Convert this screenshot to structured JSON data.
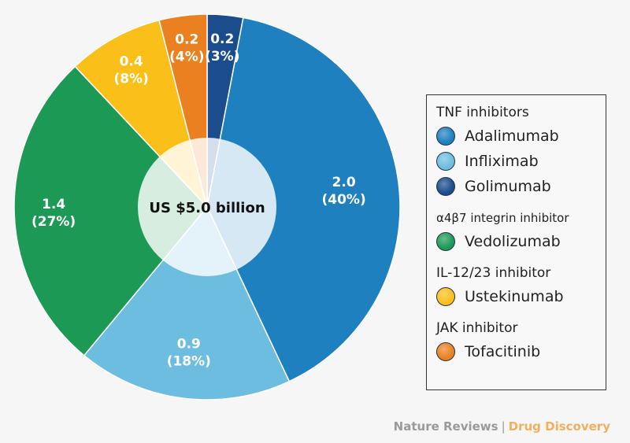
{
  "chart_data": {
    "type": "pie",
    "title": "",
    "center_label": "US $5.0 billion",
    "total": 5.0,
    "slices": [
      {
        "name": "Golimumab",
        "value": 0.2,
        "percent": 3,
        "value_label": "0.2",
        "percent_label": "(3%)",
        "color": "#1b4c8c"
      },
      {
        "name": "Adalimumab",
        "value": 2.0,
        "percent": 40,
        "value_label": "2.0",
        "percent_label": "(40%)",
        "color": "#1f80c0"
      },
      {
        "name": "Infliximab",
        "value": 0.9,
        "percent": 18,
        "value_label": "0.9",
        "percent_label": "(18%)",
        "color": "#6cbde0"
      },
      {
        "name": "Vedolizumab",
        "value": 1.4,
        "percent": 27,
        "value_label": "1.4",
        "percent_label": "(27%)",
        "color": "#1c9a55"
      },
      {
        "name": "Ustekinumab",
        "value": 0.4,
        "percent": 8,
        "value_label": "0.4",
        "percent_label": "(8%)",
        "color": "#fbbf1a"
      },
      {
        "name": "Tofacitinib",
        "value": 0.2,
        "percent": 4,
        "value_label": "0.2",
        "percent_label": "(4%)",
        "color": "#ea8020"
      }
    ],
    "legend_placement": "right"
  },
  "legend": {
    "groups": [
      {
        "title": "TNF inhibitors",
        "items": [
          {
            "label": "Adalimumab",
            "color": "#1f80c0"
          },
          {
            "label": "Infliximab",
            "color": "#6cbde0"
          },
          {
            "label": "Golimumab",
            "color": "#1b4c8c"
          }
        ]
      },
      {
        "title": "α4β7 integrin inhibitor",
        "items": [
          {
            "label": "Vedolizumab",
            "color": "#1c9a55"
          }
        ]
      },
      {
        "title": "IL-12/23 inhibitor",
        "items": [
          {
            "label": "Ustekinumab",
            "color": "#fbbf1a"
          }
        ]
      },
      {
        "title": "JAK inhibitor",
        "items": [
          {
            "label": "Tofacitinib",
            "color": "#ea8020"
          }
        ]
      }
    ]
  },
  "footer": {
    "journal": "Nature Reviews",
    "section": "Drug Discovery"
  }
}
